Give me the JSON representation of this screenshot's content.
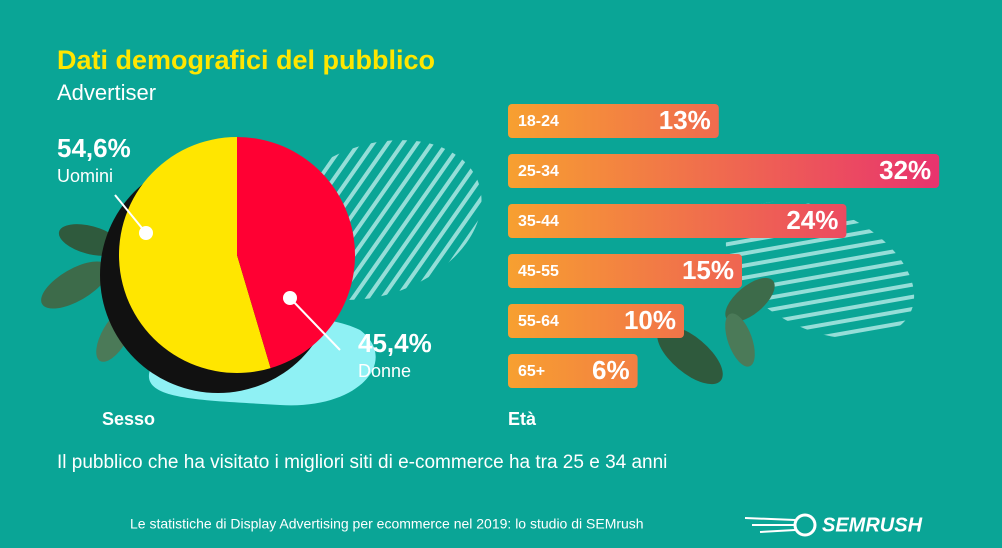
{
  "header": {
    "title": "Dati demografici del pubblico",
    "subtitle": "Advertiser"
  },
  "chart_data": [
    {
      "type": "pie",
      "title": "Sesso",
      "categories": [
        "Uomini",
        "Donne"
      ],
      "values": [
        54.6,
        45.4
      ],
      "value_labels": [
        "54,6%",
        "45,4%"
      ],
      "colors": [
        "#ffe600",
        "#ff0033"
      ]
    },
    {
      "type": "bar",
      "orientation": "horizontal",
      "title": "Età",
      "categories": [
        "18-24",
        "25-34",
        "35-44",
        "45-55",
        "55-64",
        "65+"
      ],
      "values": [
        13,
        32,
        24,
        15,
        10,
        6
      ],
      "value_labels": [
        "13%",
        "32%",
        "24%",
        "15%",
        "10%",
        "6%"
      ],
      "colors": [
        "#f7a030",
        "#e8336e"
      ]
    }
  ],
  "note": "Il pubblico che ha visitato i migliori siti di e-commerce ha tra 25 e 34 anni",
  "footer": "Le statistiche di Display Advertising per ecommerce nel 2019: lo studio di SEMrush",
  "brand": "SEMRUSH"
}
